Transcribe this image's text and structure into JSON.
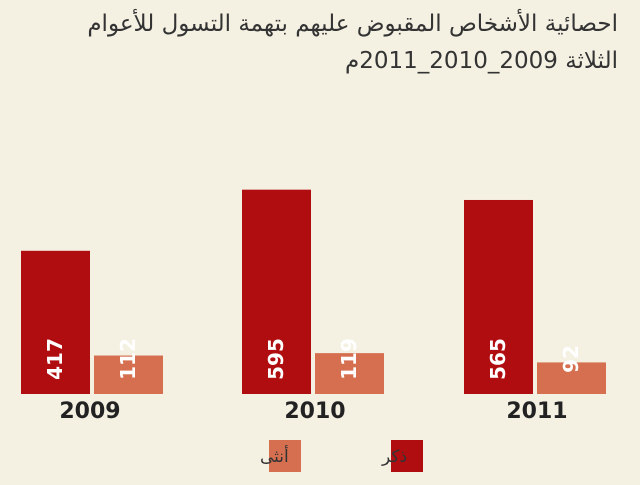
{
  "chart_data": {
    "type": "bar",
    "title_line1": "احصائية الأشخاص المقبوض عليهم بتهمة التسول للأعوام",
    "title_line2": "الثلاثة 2009_2010_2011م",
    "categories": [
      "2009",
      "2010",
      "2011"
    ],
    "series": [
      {
        "name": "ذكر",
        "values": [
          417,
          595,
          565
        ],
        "color": "#b00d10"
      },
      {
        "name": "أنثى",
        "values": [
          112,
          119,
          92
        ],
        "color": "#d56f4f"
      }
    ],
    "value_labels": [
      [
        "417",
        "595",
        "565"
      ],
      [
        "112",
        "119",
        "92"
      ]
    ],
    "ylim": [
      0,
      650
    ],
    "grid": false,
    "legend": "bottom"
  }
}
